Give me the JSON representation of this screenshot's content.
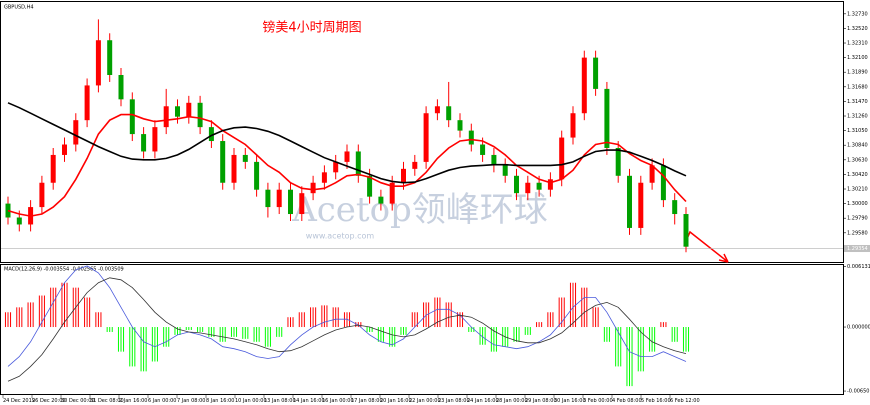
{
  "chart_data": [
    {
      "type": "candlestick",
      "title": "镑美4小时周期图",
      "symbol": "GBPUSD,H4",
      "watermark": "Acetop领峰环球",
      "watermark_url": "www.acetop.com",
      "up_color": "#ff0000",
      "down_color": "#00a000",
      "open": [
        1.3,
        1.298,
        1.297,
        1.2995,
        1.303,
        1.307,
        1.3085,
        1.312,
        1.317,
        1.3235,
        1.3185,
        1.315,
        1.31,
        1.3075,
        1.311,
        1.314,
        1.3125,
        1.3145,
        1.311,
        1.309,
        1.303,
        1.307,
        1.306,
        1.302,
        1.2995,
        1.302,
        1.2985,
        1.3015,
        1.303,
        1.3045,
        1.306,
        1.3075,
        1.304,
        1.301,
        1.3,
        1.303,
        1.305,
        1.306,
        1.313,
        1.314,
        1.312,
        1.3105,
        1.3085,
        1.307,
        1.3055,
        1.304,
        1.3015,
        1.303,
        1.302,
        1.3035,
        1.3095,
        1.313,
        1.321,
        1.3165,
        1.308,
        1.304,
        1.2965,
        1.303,
        1.3055,
        1.3005,
        1.2985
      ],
      "high": [
        1.301,
        1.299,
        1.3005,
        1.304,
        1.308,
        1.3095,
        1.313,
        1.318,
        1.3265,
        1.3245,
        1.3195,
        1.316,
        1.311,
        1.312,
        1.3165,
        1.315,
        1.3155,
        1.3155,
        1.312,
        1.31,
        1.308,
        1.308,
        1.307,
        1.303,
        1.303,
        1.303,
        1.3025,
        1.304,
        1.3055,
        1.307,
        1.3085,
        1.3085,
        1.305,
        1.302,
        1.304,
        1.306,
        1.307,
        1.314,
        1.315,
        1.3175,
        1.313,
        1.3115,
        1.3095,
        1.308,
        1.3065,
        1.305,
        1.304,
        1.304,
        1.3045,
        1.3105,
        1.314,
        1.322,
        1.322,
        1.3175,
        1.309,
        1.305,
        1.304,
        1.3065,
        1.3065,
        1.3015,
        1.2995
      ],
      "low": [
        1.297,
        1.296,
        1.296,
        1.2985,
        1.302,
        1.306,
        1.3075,
        1.311,
        1.316,
        1.3175,
        1.314,
        1.309,
        1.3065,
        1.3065,
        1.31,
        1.3115,
        1.3115,
        1.31,
        1.308,
        1.302,
        1.302,
        1.305,
        1.301,
        1.298,
        1.2985,
        1.2975,
        1.2975,
        1.3005,
        1.302,
        1.3035,
        1.305,
        1.303,
        1.3,
        1.299,
        1.299,
        1.302,
        1.304,
        1.305,
        1.312,
        1.311,
        1.3095,
        1.3075,
        1.306,
        1.3045,
        1.303,
        1.3005,
        1.3005,
        1.301,
        1.301,
        1.3025,
        1.3085,
        1.312,
        1.3155,
        1.307,
        1.303,
        1.2955,
        1.2955,
        1.302,
        1.2995,
        1.297,
        1.293
      ],
      "close": [
        1.298,
        1.297,
        1.2995,
        1.303,
        1.307,
        1.3085,
        1.312,
        1.317,
        1.3235,
        1.3185,
        1.315,
        1.31,
        1.3075,
        1.311,
        1.314,
        1.3125,
        1.3145,
        1.311,
        1.309,
        1.303,
        1.307,
        1.306,
        1.302,
        1.2995,
        1.302,
        1.2985,
        1.3015,
        1.303,
        1.3045,
        1.306,
        1.3075,
        1.304,
        1.301,
        1.3,
        1.303,
        1.305,
        1.306,
        1.313,
        1.314,
        1.312,
        1.3105,
        1.3085,
        1.307,
        1.3055,
        1.304,
        1.3015,
        1.303,
        1.302,
        1.3035,
        1.3095,
        1.313,
        1.321,
        1.3165,
        1.308,
        1.304,
        1.2965,
        1.303,
        1.3055,
        1.3005,
        1.2985,
        1.2938
      ],
      "series": [
        {
          "color": "#ff0000",
          "values": [
            1.299,
            1.2985,
            1.2982,
            1.2985,
            1.2995,
            1.301,
            1.3035,
            1.3065,
            1.31,
            1.312,
            1.3128,
            1.3128,
            1.3122,
            1.3118,
            1.312,
            1.3122,
            1.3125,
            1.3123,
            1.3118,
            1.3105,
            1.3095,
            1.3085,
            1.307,
            1.3055,
            1.3045,
            1.303,
            1.3022,
            1.302,
            1.3022,
            1.303,
            1.304,
            1.3042,
            1.3038,
            1.303,
            1.3025,
            1.3025,
            1.303,
            1.3045,
            1.3065,
            1.308,
            1.309,
            1.3092,
            1.309,
            1.3082,
            1.307,
            1.3055,
            1.3045,
            1.3035,
            1.303,
            1.3035,
            1.3048,
            1.307,
            1.3085,
            1.3088,
            1.3085,
            1.3072,
            1.3062,
            1.3055,
            1.304,
            1.302,
            1.3003
          ]
        },
        {
          "color": "#000000",
          "values": [
            1.3145,
            1.3138,
            1.313,
            1.3122,
            1.3114,
            1.3106,
            1.3098,
            1.309,
            1.3082,
            1.3075,
            1.3068,
            1.3064,
            1.3063,
            1.3063,
            1.3065,
            1.307,
            1.3078,
            1.3088,
            1.3098,
            1.3105,
            1.3109,
            1.311,
            1.3108,
            1.3104,
            1.3098,
            1.309,
            1.3082,
            1.3074,
            1.3066,
            1.306,
            1.3054,
            1.3048,
            1.3042,
            1.3036,
            1.3032,
            1.303,
            1.3031,
            1.3036,
            1.3042,
            1.3048,
            1.3052,
            1.3054,
            1.3055,
            1.3056,
            1.3056,
            1.3055,
            1.3055,
            1.3055,
            1.3055,
            1.3056,
            1.306,
            1.3068,
            1.3075,
            1.3077,
            1.3077,
            1.3074,
            1.3068,
            1.3062,
            1.3055,
            1.3047,
            1.304
          ]
        }
      ],
      "current_price": 1.29354,
      "ylim": [
        1.2916,
        1.329
      ],
      "yticks": [
        {
          "value": 1.3273,
          "label": "1.32730"
        },
        {
          "value": 1.3252,
          "label": "1.32520"
        },
        {
          "value": 1.3231,
          "label": "1.32310"
        },
        {
          "value": 1.321,
          "label": "1.32100"
        },
        {
          "value": 1.3189,
          "label": "1.31890"
        },
        {
          "value": 1.3168,
          "label": "1.31680"
        },
        {
          "value": 1.3147,
          "label": "1.31470"
        },
        {
          "value": 1.3126,
          "label": "1.31260"
        },
        {
          "value": 1.3105,
          "label": "1.31050"
        },
        {
          "value": 1.3084,
          "label": "1.30840"
        },
        {
          "value": 1.3063,
          "label": "1.30630"
        },
        {
          "value": 1.3042,
          "label": "1.30420"
        },
        {
          "value": 1.3021,
          "label": "1.30210"
        },
        {
          "value": 1.3,
          "label": "1.30000"
        },
        {
          "value": 1.2979,
          "label": "1.29790"
        },
        {
          "value": 1.2958,
          "label": "1.29580"
        }
      ],
      "x_labels": [
        "24 Dec 2019",
        "26 Dec 20:00",
        "30 Dec 00:00",
        "31 Dec 08:00",
        "2 Jan 16:00",
        "6 Jan 00:00",
        "7 Jan 08:00",
        "8 Jan 16:00",
        "10 Jan 00:00",
        "13 Jan 08:00",
        "14 Jan 16:00",
        "16 Jan 00:00",
        "17 Jan 08:00",
        "20 Jan 16:00",
        "22 Jan 00:00",
        "23 Jan 08:00",
        "24 Jan 16:00",
        "28 Jan 00:00",
        "29 Jan 08:00",
        "30 Jan 16:00",
        "3 Feb 00:00",
        "4 Feb 08:00",
        "5 Feb 16:00",
        "6 Feb 12:00"
      ]
    },
    {
      "type": "macd",
      "label": "MACD(12,26,9) -0.003554 -0.002565 -0.003509",
      "pos_color": "#ff0000",
      "neg_color": "#00ff00",
      "values": [
        0.0015,
        0.002,
        0.0025,
        0.0032,
        0.004,
        0.0045,
        0.004,
        0.003,
        0.0015,
        -0.0005,
        -0.0025,
        -0.004,
        -0.0045,
        -0.0035,
        -0.002,
        -0.0008,
        -0.0003,
        -0.0005,
        -0.001,
        -0.0015,
        -0.001,
        -0.0012,
        -0.0015,
        -0.002,
        -0.001,
        0.001,
        0.0015,
        0.002,
        0.0022,
        0.002,
        0.0015,
        0.0005,
        -0.0005,
        -0.0015,
        -0.002,
        -0.0008,
        0.0015,
        0.0025,
        0.003,
        0.0025,
        0.0015,
        -0.0005,
        -0.0018,
        -0.0025,
        -0.002,
        -0.0015,
        -0.0008,
        0.0005,
        0.0015,
        0.003,
        0.0045,
        0.004,
        0.002,
        -0.0015,
        -0.004,
        -0.006,
        -0.0045,
        -0.0025,
        0.0005,
        -0.0015,
        -0.0025
      ],
      "series": [
        {
          "color": "#4a5adc",
          "values": [
            -0.004,
            -0.003,
            -0.0015,
            0.0005,
            0.0025,
            0.0045,
            0.0058,
            0.0062,
            0.0055,
            0.004,
            0.002,
            0.0,
            -0.0015,
            -0.002,
            -0.0015,
            -0.0008,
            -0.0005,
            -0.0008,
            -0.0012,
            -0.002,
            -0.0022,
            -0.0025,
            -0.003,
            -0.0032,
            -0.003,
            -0.0018,
            -0.0008,
            0.0,
            0.0005,
            0.0008,
            0.0008,
            0.0002,
            -0.0008,
            -0.0015,
            -0.0018,
            -0.0012,
            0.0,
            0.0012,
            0.0018,
            0.0018,
            0.0012,
            0.0,
            -0.001,
            -0.0018,
            -0.002,
            -0.0022,
            -0.002,
            -0.0015,
            -0.0008,
            0.0005,
            0.002,
            0.003,
            0.003,
            0.0015,
            -0.0005,
            -0.0025,
            -0.003,
            -0.003,
            -0.0025,
            -0.003,
            -0.0035
          ]
        },
        {
          "color": "#333333",
          "values": [
            -0.0055,
            -0.005,
            -0.004,
            -0.0028,
            -0.0012,
            0.0005,
            0.002,
            0.0035,
            0.0045,
            0.005,
            0.0048,
            0.004,
            0.0028,
            0.0015,
            0.0005,
            -0.0002,
            -0.0005,
            -0.0006,
            -0.0008,
            -0.001,
            -0.0012,
            -0.0015,
            -0.0018,
            -0.0022,
            -0.0025,
            -0.0024,
            -0.002,
            -0.0014,
            -0.0008,
            -0.0003,
            0.0,
            0.0002,
            0.0,
            -0.0004,
            -0.0008,
            -0.001,
            -0.0008,
            -0.0002,
            0.0005,
            0.001,
            0.0012,
            0.001,
            0.0004,
            -0.0004,
            -0.001,
            -0.0014,
            -0.0016,
            -0.0016,
            -0.0012,
            -0.0006,
            0.0004,
            0.0015,
            0.0022,
            0.0025,
            0.002,
            0.0008,
            -0.0005,
            -0.0015,
            -0.002,
            -0.0024,
            -0.0027
          ]
        }
      ],
      "ylim": [
        -0.0068,
        0.0063
      ],
      "yticks": [
        0.006131,
        {
          "value": 0,
          "label": "0.000000"
        },
        -0.006501
      ]
    }
  ]
}
